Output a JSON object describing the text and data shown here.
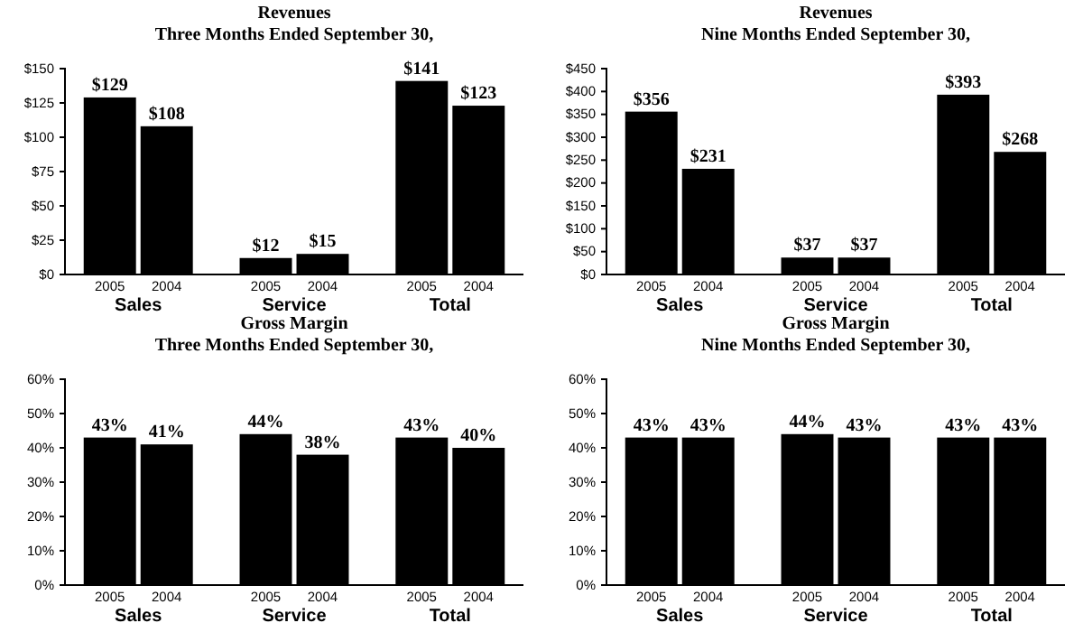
{
  "chart_data": [
    {
      "type": "bar",
      "title": "Revenues",
      "subtitle": "Three Months Ended September 30,",
      "categories": [
        "Sales",
        "Service",
        "Total"
      ],
      "ylim": [
        0,
        150
      ],
      "yticks": [
        {
          "value": 0,
          "label": "$0"
        },
        {
          "value": 25,
          "label": "$25"
        },
        {
          "value": 50,
          "label": "$50"
        },
        {
          "value": 75,
          "label": "$75"
        },
        {
          "value": 100,
          "label": "$100"
        },
        {
          "value": 125,
          "label": "$125"
        },
        {
          "value": 150,
          "label": "$150"
        }
      ],
      "series": [
        {
          "name": "2005",
          "color": "#000000",
          "values": [
            129,
            12,
            141
          ],
          "value_labels": [
            "$129",
            "$12",
            "$141"
          ]
        },
        {
          "name": "2004",
          "color": "#000000",
          "values": [
            108,
            15,
            123
          ],
          "value_labels": [
            "$108",
            "$15",
            "$123"
          ]
        }
      ]
    },
    {
      "type": "bar",
      "title": "Revenues",
      "subtitle": "Nine Months Ended September 30,",
      "categories": [
        "Sales",
        "Service",
        "Total"
      ],
      "ylim": [
        0,
        450
      ],
      "yticks": [
        {
          "value": 0,
          "label": "$0"
        },
        {
          "value": 50,
          "label": "$50"
        },
        {
          "value": 100,
          "label": "$100"
        },
        {
          "value": 150,
          "label": "$150"
        },
        {
          "value": 200,
          "label": "$200"
        },
        {
          "value": 250,
          "label": "$250"
        },
        {
          "value": 300,
          "label": "$300"
        },
        {
          "value": 350,
          "label": "$350"
        },
        {
          "value": 400,
          "label": "$400"
        },
        {
          "value": 450,
          "label": "$450"
        }
      ],
      "series": [
        {
          "name": "2005",
          "color": "#000000",
          "values": [
            356,
            37,
            393
          ],
          "value_labels": [
            "$356",
            "$37",
            "$393"
          ]
        },
        {
          "name": "2004",
          "color": "#000000",
          "values": [
            231,
            37,
            268
          ],
          "value_labels": [
            "$231",
            "$37",
            "$268"
          ]
        }
      ]
    },
    {
      "type": "bar",
      "title": "Gross Margin",
      "subtitle": "Three Months Ended September 30,",
      "categories": [
        "Sales",
        "Service",
        "Total"
      ],
      "ylim": [
        0,
        60
      ],
      "yticks": [
        {
          "value": 0,
          "label": "0%"
        },
        {
          "value": 10,
          "label": "10%"
        },
        {
          "value": 20,
          "label": "20%"
        },
        {
          "value": 30,
          "label": "30%"
        },
        {
          "value": 40,
          "label": "40%"
        },
        {
          "value": 50,
          "label": "50%"
        },
        {
          "value": 60,
          "label": "60%"
        }
      ],
      "series": [
        {
          "name": "2005",
          "color": "#000000",
          "values": [
            43,
            44,
            43
          ],
          "value_labels": [
            "43%",
            "44%",
            "43%"
          ]
        },
        {
          "name": "2004",
          "color": "#000000",
          "values": [
            41,
            38,
            40
          ],
          "value_labels": [
            "41%",
            "38%",
            "40%"
          ]
        }
      ]
    },
    {
      "type": "bar",
      "title": "Gross Margin",
      "subtitle": "Nine Months Ended September 30,",
      "categories": [
        "Sales",
        "Service",
        "Total"
      ],
      "ylim": [
        0,
        60
      ],
      "yticks": [
        {
          "value": 0,
          "label": "0%"
        },
        {
          "value": 10,
          "label": "10%"
        },
        {
          "value": 20,
          "label": "20%"
        },
        {
          "value": 30,
          "label": "30%"
        },
        {
          "value": 40,
          "label": "40%"
        },
        {
          "value": 50,
          "label": "50%"
        },
        {
          "value": 60,
          "label": "60%"
        }
      ],
      "series": [
        {
          "name": "2005",
          "color": "#000000",
          "values": [
            43,
            44,
            43
          ],
          "value_labels": [
            "43%",
            "44%",
            "43%"
          ]
        },
        {
          "name": "2004",
          "color": "#000000",
          "values": [
            43,
            43,
            43
          ],
          "value_labels": [
            "43%",
            "43%",
            "43%"
          ]
        }
      ]
    }
  ]
}
